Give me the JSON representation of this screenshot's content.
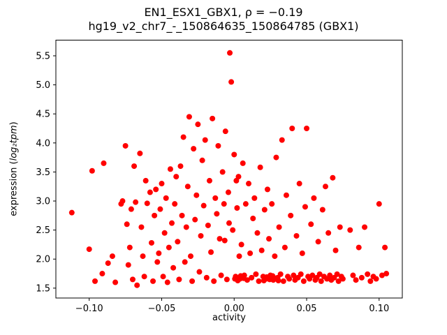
{
  "figure": {
    "title_line1": "EN1_ESX1_GBX1, ρ = −0.19",
    "title_line2": "hg19_v2_chr7_-_150864635_150864785 (GBX1)"
  },
  "chart_data": {
    "type": "scatter",
    "title": "EN1_ESX1_GBX1, ρ = −0.19\nhg19_v2_chr7_-_150864635_150864785 (GBX1)",
    "xlabel": "activity",
    "ylabel": "expression (log₂tpm)",
    "ylabel_parts": {
      "prefix": "expression (",
      "math": "log₂tpm",
      "suffix": ")"
    },
    "marker_color": "#ff0000",
    "legend": "none",
    "grid": false,
    "xlim": [
      -0.123,
      0.116
    ],
    "ylim": [
      1.33,
      5.77
    ],
    "xticks": [
      -0.1,
      -0.05,
      0.0,
      0.05,
      0.1
    ],
    "xtick_labels": [
      "−0.10",
      "−0.05",
      "0.00",
      "0.05",
      "0.10"
    ],
    "yticks": [
      1.5,
      2.0,
      2.5,
      3.0,
      3.5,
      4.0,
      4.5,
      5.0,
      5.5
    ],
    "ytick_labels": [
      "1.5",
      "2.0",
      "2.5",
      "3.0",
      "3.5",
      "4.0",
      "4.5",
      "5.0",
      "5.5"
    ],
    "points": [
      [
        -0.112,
        2.8
      ],
      [
        -0.1,
        2.17
      ],
      [
        -0.098,
        3.52
      ],
      [
        -0.096,
        1.62
      ],
      [
        -0.091,
        1.75
      ],
      [
        -0.09,
        3.65
      ],
      [
        -0.087,
        1.93
      ],
      [
        -0.084,
        2.05
      ],
      [
        -0.082,
        1.6
      ],
      [
        -0.078,
        2.95
      ],
      [
        -0.077,
        3.0
      ],
      [
        -0.075,
        3.95
      ],
      [
        -0.074,
        2.6
      ],
      [
        -0.073,
        1.9
      ],
      [
        -0.072,
        2.2
      ],
      [
        -0.071,
        2.86
      ],
      [
        -0.07,
        1.65
      ],
      [
        -0.069,
        3.6
      ],
      [
        -0.068,
        2.98
      ],
      [
        -0.067,
        1.55
      ],
      [
        -0.065,
        3.82
      ],
      [
        -0.064,
        2.55
      ],
      [
        -0.063,
        2.05
      ],
      [
        -0.062,
        1.7
      ],
      [
        -0.061,
        3.35
      ],
      [
        -0.06,
        2.96
      ],
      [
        -0.058,
        3.15
      ],
      [
        -0.057,
        2.28
      ],
      [
        -0.056,
        1.62
      ],
      [
        -0.055,
        2.75
      ],
      [
        -0.054,
        3.2
      ],
      [
        -0.053,
        1.95
      ],
      [
        -0.052,
        2.1
      ],
      [
        -0.051,
        2.86
      ],
      [
        -0.05,
        3.3
      ],
      [
        -0.049,
        1.7
      ],
      [
        -0.048,
        2.45
      ],
      [
        -0.047,
        3.05
      ],
      [
        -0.046,
        1.6
      ],
      [
        -0.045,
        2.2
      ],
      [
        -0.044,
        3.55
      ],
      [
        -0.043,
        2.62
      ],
      [
        -0.042,
        1.85
      ],
      [
        -0.041,
        2.95
      ],
      [
        -0.04,
        3.42
      ],
      [
        -0.039,
        2.3
      ],
      [
        -0.038,
        1.65
      ],
      [
        -0.037,
        3.6
      ],
      [
        -0.036,
        2.75
      ],
      [
        -0.035,
        4.1
      ],
      [
        -0.034,
        1.95
      ],
      [
        -0.033,
        2.55
      ],
      [
        -0.032,
        3.25
      ],
      [
        -0.031,
        4.45
      ],
      [
        -0.03,
        2.05
      ],
      [
        -0.029,
        1.62
      ],
      [
        -0.028,
        3.9
      ],
      [
        -0.027,
        2.68
      ],
      [
        -0.026,
        3.1
      ],
      [
        -0.025,
        4.32
      ],
      [
        -0.024,
        1.78
      ],
      [
        -0.023,
        2.4
      ],
      [
        -0.022,
        3.7
      ],
      [
        -0.021,
        2.92
      ],
      [
        -0.02,
        4.05
      ],
      [
        -0.019,
        1.68
      ],
      [
        -0.018,
        2.58
      ],
      [
        -0.017,
        3.35
      ],
      [
        -0.016,
        2.12
      ],
      [
        -0.015,
        4.42
      ],
      [
        -0.014,
        1.62
      ],
      [
        -0.013,
        3.05
      ],
      [
        -0.012,
        2.78
      ],
      [
        -0.011,
        3.95
      ],
      [
        -0.01,
        2.35
      ],
      [
        -0.009,
        1.72
      ],
      [
        -0.008,
        3.5
      ],
      [
        -0.007,
        2.95
      ],
      [
        -0.0065,
        2.32
      ],
      [
        -0.006,
        4.2
      ],
      [
        -0.005,
        1.65
      ],
      [
        -0.004,
        3.15
      ],
      [
        -0.0035,
        2.62
      ],
      [
        -0.003,
        5.55
      ],
      [
        -0.002,
        5.05
      ],
      [
        -0.001,
        2.5
      ],
      [
        0.0,
        3.8
      ],
      [
        0.0005,
        1.66
      ],
      [
        0.001,
        1.7
      ],
      [
        0.0015,
        3.35
      ],
      [
        0.002,
        2.88
      ],
      [
        0.0025,
        1.63
      ],
      [
        0.003,
        3.42
      ],
      [
        0.0035,
        2.05
      ],
      [
        0.004,
        1.66
      ],
      [
        0.0045,
        1.71
      ],
      [
        0.005,
        2.25
      ],
      [
        0.006,
        3.65
      ],
      [
        0.0065,
        1.67
      ],
      [
        0.007,
        1.72
      ],
      [
        0.008,
        2.95
      ],
      [
        0.009,
        1.64
      ],
      [
        0.01,
        3.3
      ],
      [
        0.011,
        2.1
      ],
      [
        0.012,
        1.68
      ],
      [
        0.013,
        2.7
      ],
      [
        0.014,
        3.05
      ],
      [
        0.015,
        1.74
      ],
      [
        0.016,
        2.45
      ],
      [
        0.017,
        1.62
      ],
      [
        0.018,
        3.58
      ],
      [
        0.019,
        2.15
      ],
      [
        0.02,
        1.7
      ],
      [
        0.0205,
        1.63
      ],
      [
        0.021,
        2.85
      ],
      [
        0.022,
        1.66
      ],
      [
        0.0225,
        1.69
      ],
      [
        0.023,
        3.2
      ],
      [
        0.024,
        2.35
      ],
      [
        0.0245,
        1.65
      ],
      [
        0.025,
        1.72
      ],
      [
        0.026,
        2.95
      ],
      [
        0.0265,
        1.71
      ],
      [
        0.027,
        1.64
      ],
      [
        0.028,
        2.05
      ],
      [
        0.0285,
        1.67
      ],
      [
        0.029,
        3.75
      ],
      [
        0.03,
        1.68
      ],
      [
        0.0305,
        1.63
      ],
      [
        0.031,
        2.55
      ],
      [
        0.032,
        1.74
      ],
      [
        0.033,
        4.05
      ],
      [
        0.034,
        1.62
      ],
      [
        0.035,
        2.2
      ],
      [
        0.036,
        3.1
      ],
      [
        0.037,
        1.7
      ],
      [
        0.038,
        1.66
      ],
      [
        0.039,
        2.75
      ],
      [
        0.04,
        4.25
      ],
      [
        0.041,
        1.72
      ],
      [
        0.042,
        1.64
      ],
      [
        0.043,
        2.4
      ],
      [
        0.044,
        1.68
      ],
      [
        0.045,
        3.3
      ],
      [
        0.046,
        1.74
      ],
      [
        0.047,
        2.1
      ],
      [
        0.048,
        1.62
      ],
      [
        0.049,
        2.9
      ],
      [
        0.05,
        4.25
      ],
      [
        0.051,
        1.7
      ],
      [
        0.052,
        1.66
      ],
      [
        0.053,
        2.6
      ],
      [
        0.054,
        1.72
      ],
      [
        0.055,
        3.05
      ],
      [
        0.056,
        1.64
      ],
      [
        0.057,
        1.68
      ],
      [
        0.058,
        2.3
      ],
      [
        0.059,
        1.74
      ],
      [
        0.06,
        1.62
      ],
      [
        0.061,
        2.85
      ],
      [
        0.062,
        1.7
      ],
      [
        0.063,
        3.25
      ],
      [
        0.064,
        1.66
      ],
      [
        0.065,
        2.45
      ],
      [
        0.066,
        1.72
      ],
      [
        0.067,
        1.64
      ],
      [
        0.068,
        3.4
      ],
      [
        0.069,
        1.68
      ],
      [
        0.07,
        2.15
      ],
      [
        0.071,
        1.74
      ],
      [
        0.072,
        1.62
      ],
      [
        0.073,
        2.55
      ],
      [
        0.074,
        1.7
      ],
      [
        0.075,
        1.66
      ],
      [
        0.08,
        2.5
      ],
      [
        0.082,
        1.72
      ],
      [
        0.084,
        1.64
      ],
      [
        0.086,
        2.2
      ],
      [
        0.088,
        1.68
      ],
      [
        0.09,
        2.55
      ],
      [
        0.092,
        1.74
      ],
      [
        0.094,
        1.62
      ],
      [
        0.096,
        1.7
      ],
      [
        0.098,
        1.66
      ],
      [
        0.1,
        2.95
      ],
      [
        0.102,
        1.72
      ],
      [
        0.104,
        2.2
      ],
      [
        0.105,
        1.75
      ]
    ]
  }
}
